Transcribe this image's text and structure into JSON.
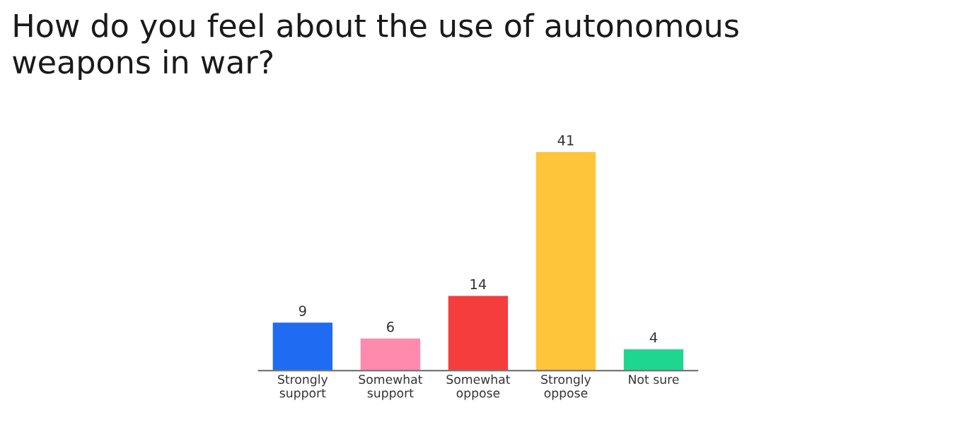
{
  "chart_data": {
    "type": "bar",
    "title": "How do you feel about the use of autonomous\nweapons in war?",
    "categories": [
      "Strongly\nsupport",
      "Somewhat\nsupport",
      "Somewhat\noppose",
      "Strongly\noppose",
      "Not sure"
    ],
    "values": [
      9,
      6,
      14,
      41,
      4
    ],
    "colors": [
      "#1f6bf2",
      "#ff8aae",
      "#f53d3d",
      "#ffc53a",
      "#1fd690"
    ],
    "data_labels": true,
    "grid": false,
    "legend": false
  }
}
